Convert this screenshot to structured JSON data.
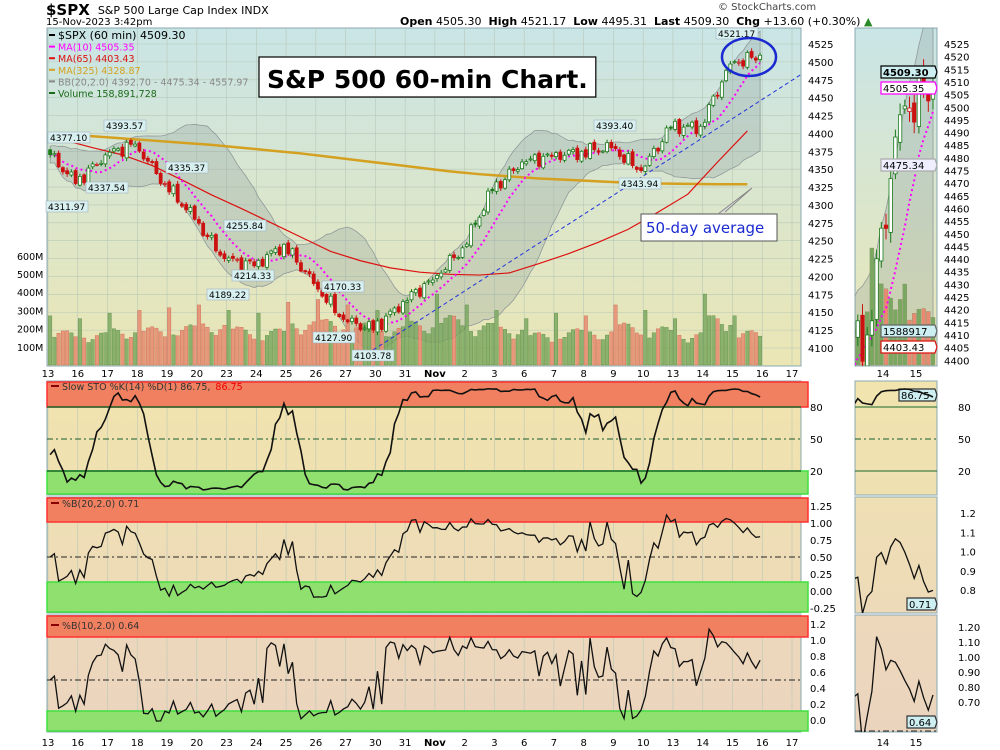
{
  "header": {
    "symbol": "$SPX",
    "name": "S&P 500 Large Cap Index",
    "exchange": "INDX",
    "datetime": "15-Nov-2023 3:42pm",
    "open_label": "Open",
    "open": "4505.30",
    "high_label": "High",
    "high": "4521.17",
    "low_label": "Low",
    "low": "4495.31",
    "last_label": "Last",
    "last": "4509.30",
    "chg_label": "Chg",
    "chg": "+13.60 (+0.30%)",
    "brand": "© StockCharts.com"
  },
  "legend": {
    "price": "$SPX (60 min) 4509.30",
    "ma10": "MA(10) 4505.35",
    "ma65": "MA(65) 4403.43",
    "ma325": "MA(325) 4328.87",
    "bb": "BB(20,2.0) 4392.70 - 4475.34 - 4557.97",
    "volume": "Volume 158,891,728"
  },
  "annotations": {
    "title": "S&P 500 60-min Chart.",
    "ma_note": "50-day average"
  },
  "price_labels": [
    "4377.10",
    "4393.57",
    "4335.37",
    "4337.54",
    "4311.97",
    "4255.84",
    "4214.33",
    "4189.22",
    "4170.33",
    "4127.90",
    "4103.78",
    "4393.40",
    "4343.94",
    "4521.17"
  ],
  "axes": {
    "price_ticks": [
      "4525",
      "4500",
      "4475",
      "4450",
      "4425",
      "4400",
      "4375",
      "4350",
      "4325",
      "4300",
      "4275",
      "4250",
      "4225",
      "4200",
      "4175",
      "4150",
      "4125",
      "4100"
    ],
    "volume_ticks": [
      "600M",
      "500M",
      "400M",
      "300M",
      "200M",
      "100M"
    ],
    "zoom_price_ticks": [
      "4525",
      "4520",
      "4515",
      "4510",
      "4505",
      "4500",
      "4495",
      "4490",
      "4485",
      "4480",
      "4475",
      "4470",
      "4465",
      "4460",
      "4455",
      "4450",
      "4445",
      "4440",
      "4435",
      "4430",
      "4425",
      "4420",
      "4415",
      "4410",
      "4405",
      "4400"
    ],
    "date_labels": [
      "13",
      "16",
      "17",
      "18",
      "19",
      "20",
      "23",
      "24",
      "25",
      "26",
      "27",
      "30",
      "31",
      "Nov",
      "2",
      "3",
      "6",
      "7",
      "8",
      "9",
      "10",
      "13",
      "14",
      "15",
      "16",
      "17"
    ],
    "zoom_date_labels": [
      "14",
      "15"
    ],
    "sto_ticks": [
      "80",
      "50",
      "20"
    ],
    "pb20_ticks": [
      "1.25",
      "1.00",
      "0.75",
      "0.50",
      "0.25",
      "0.00",
      "-0.25"
    ],
    "pb10_ticks": [
      "1.2",
      "1.0",
      "0.8",
      "0.6",
      "0.4",
      "0.2",
      "0.0"
    ],
    "zoom_pb20_ticks": [
      "1.2",
      "1.1",
      "1.0",
      "0.9",
      "0.8"
    ],
    "zoom_pb10_ticks": [
      "1.20",
      "1.10",
      "1.00",
      "0.90",
      "0.80",
      "0.70"
    ]
  },
  "value_tags": {
    "last": "4509.30",
    "ma10": "4505.35",
    "bb_mid": "4475.34",
    "volume": "1588917",
    "ma65": "4403.43",
    "sto": "86.75",
    "pb20": "0.71",
    "pb10": "0.64"
  },
  "indicators": {
    "sto": "Slow STO %K(14) %D(1) 86.75,",
    "sto_d": "86.75",
    "pb20": "%B(20,2.0) 0.71",
    "pb10": "%B(10,2.0) 0.64"
  },
  "colors": {
    "up": "#1a7a1a",
    "down": "#cc1111",
    "ma10": "#ff00ff",
    "ma65": "#dd1111",
    "ma325": "#d4a020",
    "trend": "#2233dd",
    "overbought": "#f08060",
    "oversold": "#90e070"
  },
  "chart_data": [
    {
      "type": "candlestick",
      "interval": "60 min",
      "days": [
        "13",
        "16",
        "17",
        "18",
        "19",
        "20",
        "23",
        "24",
        "25",
        "26",
        "27",
        "30",
        "31",
        "Nov",
        "2",
        "3",
        "6",
        "7",
        "8",
        "9",
        "10",
        "13",
        "14",
        "15"
      ],
      "start_open": 4377.1,
      "daily_close_approx": [
        4330,
        4370,
        4385,
        4330,
        4280,
        4225,
        4215,
        4245,
        4190,
        4140,
        4125,
        4165,
        4195,
        4240,
        4320,
        4360,
        4368,
        4375,
        4380,
        4348,
        4408,
        4410,
        4497,
        4509.3
      ],
      "daily_volume_m_approx": [
        180,
        170,
        190,
        200,
        210,
        220,
        200,
        190,
        230,
        240,
        220,
        200,
        230,
        260,
        220,
        200,
        170,
        190,
        180,
        220,
        200,
        170,
        260,
        180
      ],
      "ma65_approx": [
        4391,
        4380,
        4370,
        4355,
        4335,
        4314,
        4295,
        4275,
        4255,
        4235,
        4222,
        4212,
        4206,
        4203,
        4202,
        4205,
        4218,
        4232,
        4248,
        4266,
        4290,
        4315,
        4360,
        4403.43
      ],
      "ma325_approx": [
        4399,
        4396,
        4393,
        4390,
        4387,
        4384,
        4380,
        4376,
        4372,
        4367,
        4362,
        4357,
        4352,
        4347,
        4343,
        4340,
        4337,
        4335,
        4333,
        4331,
        4330,
        4329.5,
        4329,
        4328.87
      ],
      "ylim": [
        4095,
        4530
      ],
      "volume_ylim_m": [
        0,
        600
      ]
    }
  ]
}
